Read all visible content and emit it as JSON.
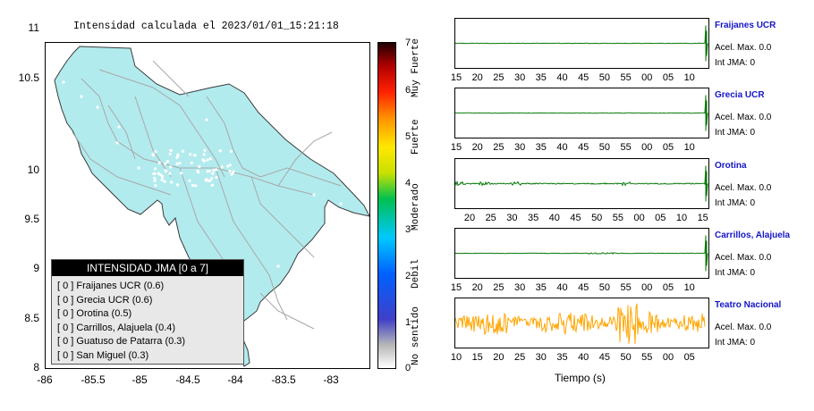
{
  "map": {
    "title": "Intensidad calculada el 2023/01/01_15:21:18",
    "y_ticks": [
      "11",
      "10.5",
      "10",
      "9.5",
      "9",
      "8.5",
      "8"
    ],
    "x_ticks": [
      "-86",
      "-85.5",
      "-85",
      "-84.5",
      "-84",
      "-83.5",
      "-83"
    ],
    "land_color": "#b2ebee",
    "road_color": "#a8a8a8"
  },
  "legend": {
    "title": "INTENSIDAD JMA [0 a 7]",
    "items": [
      "[ 0 ] Fraijanes UCR (0.6)",
      "[ 0 ] Grecia UCR (0.6)",
      "[ 0 ] Orotina (0.5)",
      "[ 0 ] Carrillos, Alajuela (0.4)",
      "[ 0 ] Guatuso de Patarra (0.3)",
      "[ 0 ] San Miguel (0.3)"
    ]
  },
  "colorbar": {
    "ticks": [
      "7",
      "6",
      "5",
      "4",
      "3",
      "2",
      "1",
      "0"
    ],
    "words": [
      "Muy Fuerte",
      "Fuerte",
      "Moderado",
      "Debil",
      "No sentido"
    ]
  },
  "traces": [
    {
      "name": "Fraijanes UCR",
      "acel": "Acel. Max. 0.0",
      "int": "Int JMA: 0",
      "ticks": [
        "15",
        "20",
        "25",
        "30",
        "35",
        "40",
        "45",
        "50",
        "55",
        "00",
        "05",
        "10"
      ],
      "color": "#0a7a0a",
      "profile": "flat"
    },
    {
      "name": "Grecia UCR",
      "acel": "Acel. Max. 0.0",
      "int": "Int JMA: 0",
      "ticks": [
        "15",
        "20",
        "25",
        "30",
        "35",
        "40",
        "45",
        "50",
        "55",
        "00",
        "05",
        "10"
      ],
      "color": "#0a7a0a",
      "profile": "flat"
    },
    {
      "name": "Orotina",
      "acel": "Acel. Max. 0.0",
      "int": "Int JMA: 0",
      "ticks": [
        "20",
        "25",
        "30",
        "35",
        "40",
        "45",
        "50",
        "55",
        "00",
        "05",
        "10",
        "15"
      ],
      "color": "#0a7a0a",
      "profile": "bursts"
    },
    {
      "name": "Carrillos, Alajuela",
      "acel": "Acel. Max. 0.0",
      "int": "Int JMA: 0",
      "ticks": [
        "15",
        "20",
        "25",
        "30",
        "35",
        "40",
        "45",
        "50",
        "55",
        "00",
        "05",
        "10"
      ],
      "color": "#0a7a0a",
      "profile": "small"
    },
    {
      "name": "Teatro Nacional",
      "acel": "Acel. Max. 0.0",
      "int": "Int JMA: 0",
      "ticks": [
        "10",
        "15",
        "20",
        "25",
        "30",
        "35",
        "40",
        "45",
        "50",
        "55",
        "00",
        "05"
      ],
      "color": "#ffa500",
      "profile": "noisy"
    }
  ],
  "time_axis_label": "Tiempo (s)"
}
